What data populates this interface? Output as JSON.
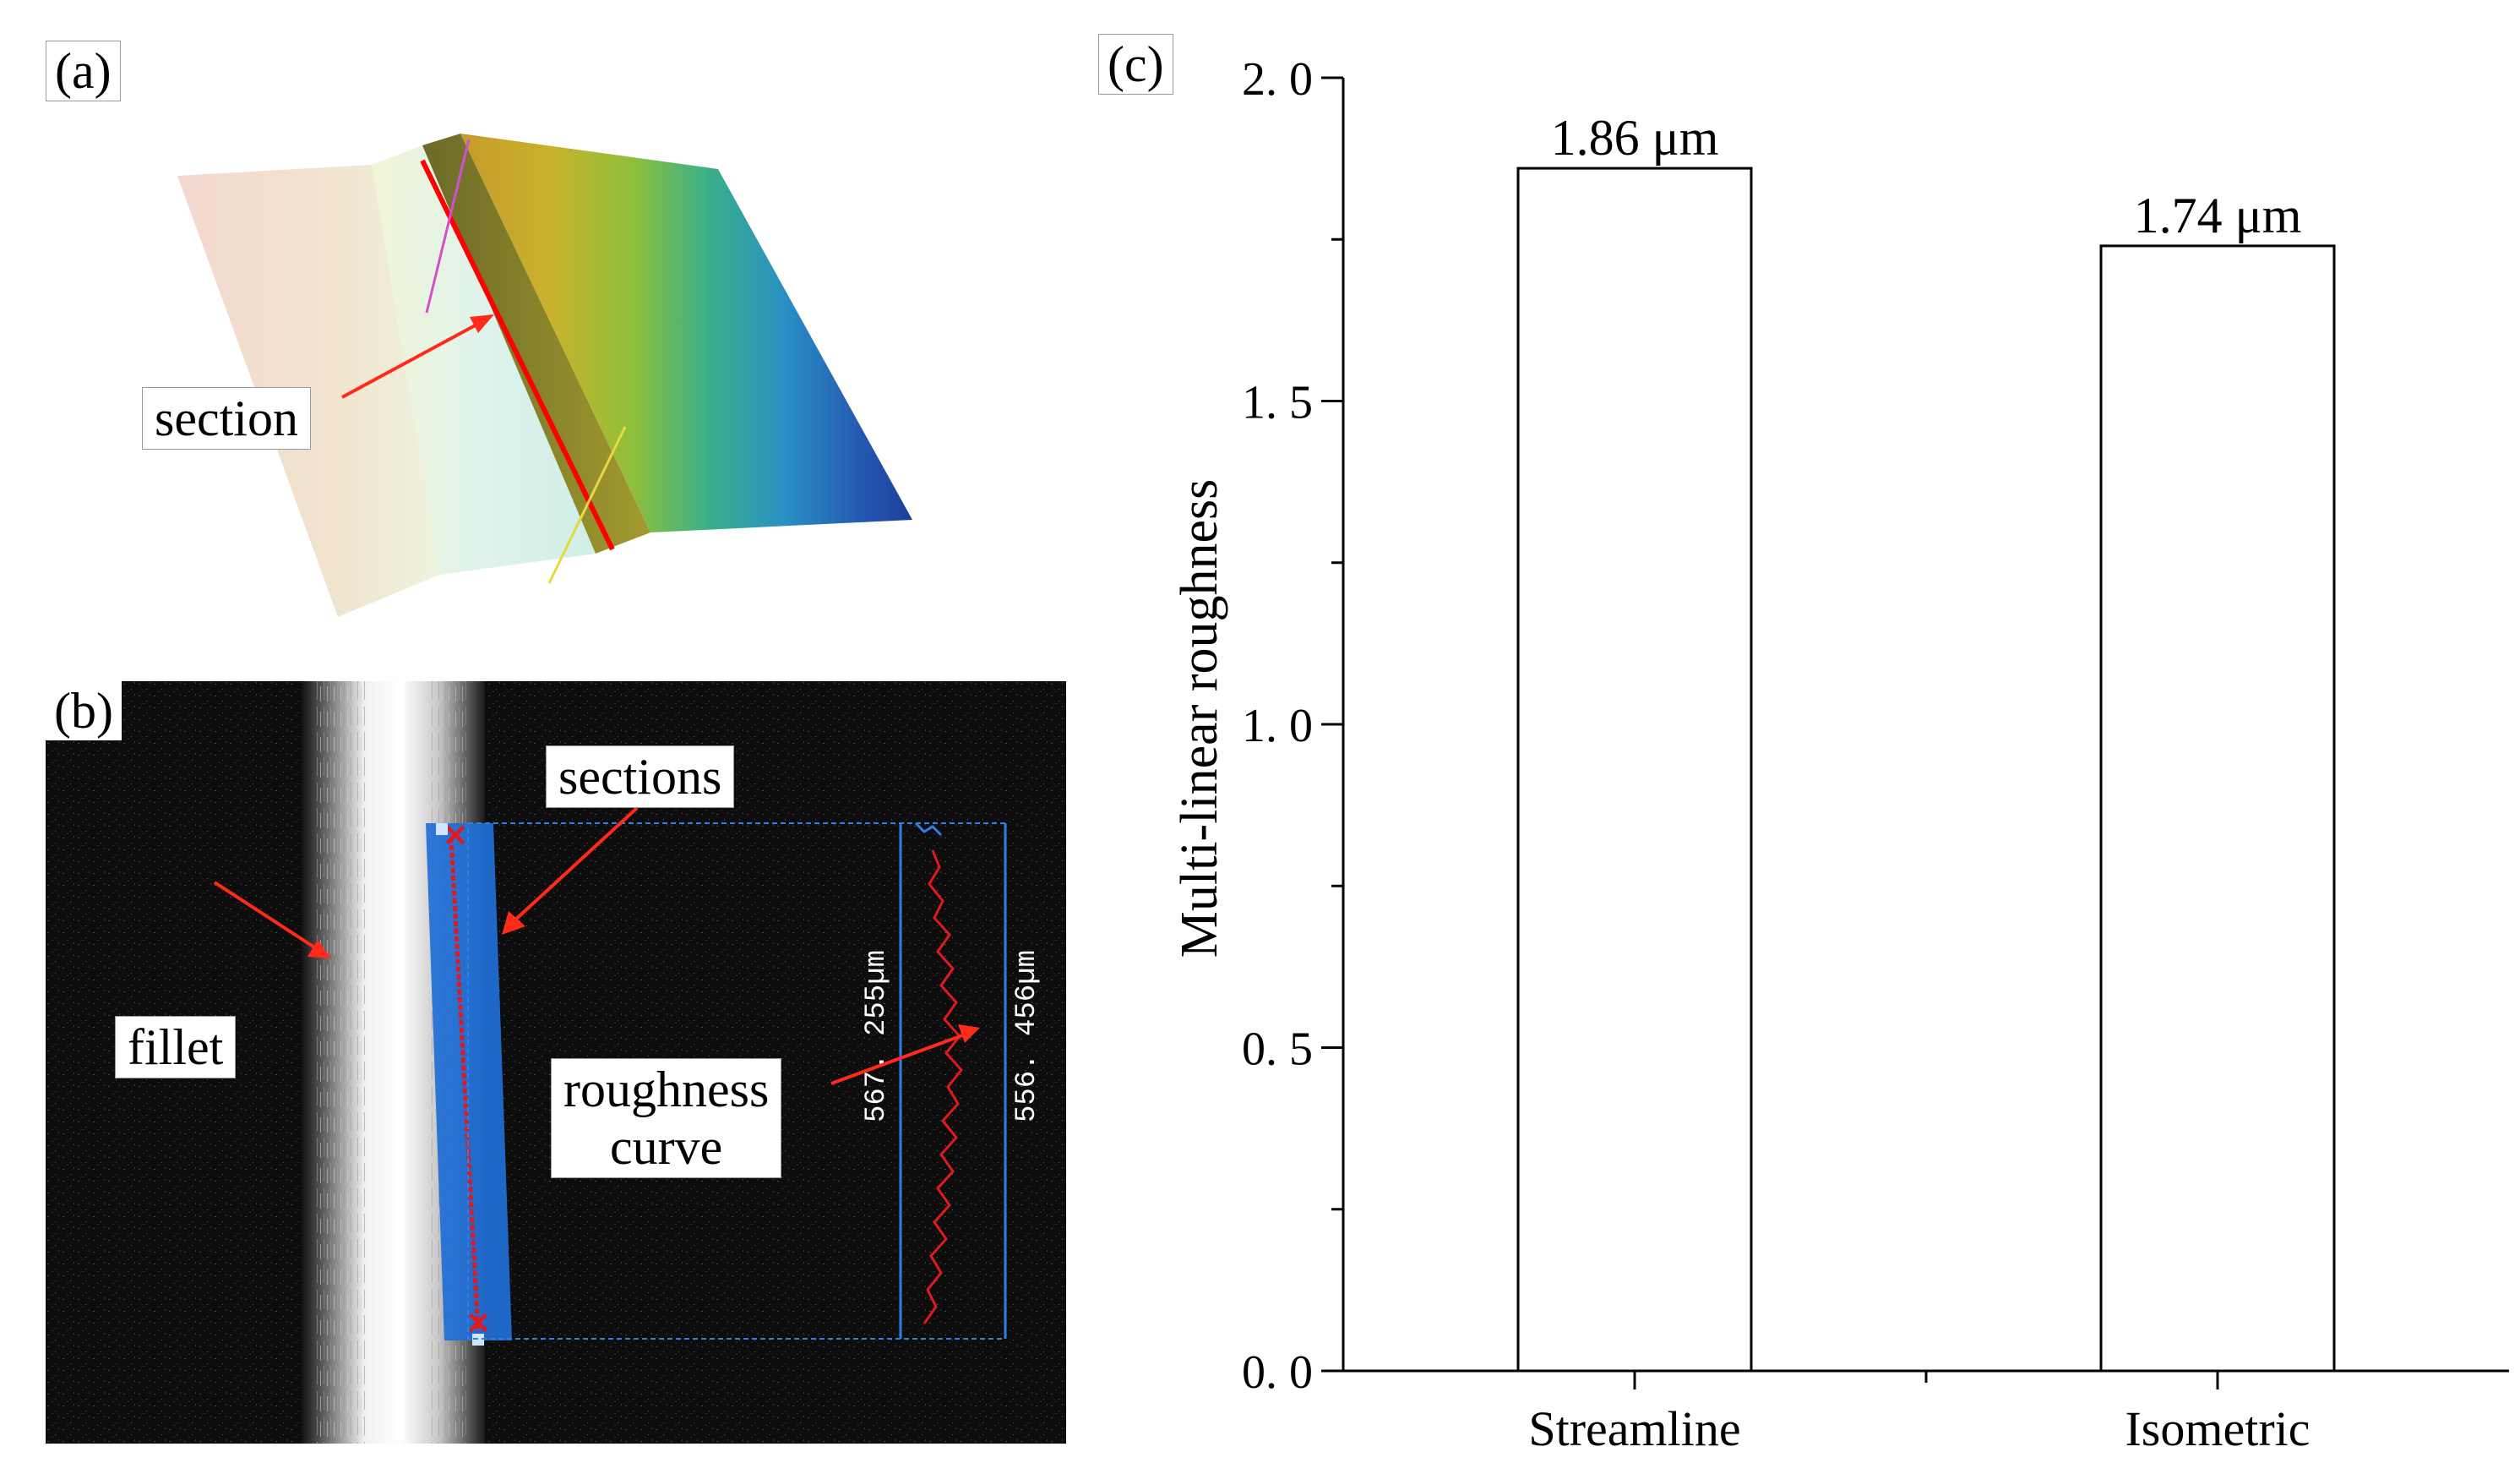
{
  "panel_a": {
    "label": "(a)",
    "callout": "section",
    "colors": {
      "arrow": "#ff2a1a",
      "section_line": "#ff0000"
    }
  },
  "panel_b": {
    "label": "(b)",
    "callouts": {
      "sections": "sections",
      "fillet": "fillet",
      "roughness_curve": "roughness\ncurve"
    },
    "measure_left": "567. 255µm",
    "measure_right": "556. 456µm",
    "colors": {
      "band": "#1f6fd6",
      "curve": "#e0191f",
      "frame": "#2f7fe6"
    }
  },
  "panel_c": {
    "label": "(c)"
  },
  "chart_data": {
    "type": "bar",
    "categories": [
      "Streamline",
      "Isometric"
    ],
    "values": [
      1.86,
      1.74
    ],
    "data_labels": [
      "1.86 μm",
      "1.74 μm"
    ],
    "title": "",
    "xlabel": "",
    "ylabel": "Multi-linear roughness",
    "ylim": [
      0,
      2.0
    ],
    "yticks": [
      "0. 0",
      "0. 5",
      "1. 0",
      "1. 5",
      "2. 0"
    ],
    "grid": false,
    "bar_fill": "#ffffff",
    "bar_edge": "#000000"
  }
}
